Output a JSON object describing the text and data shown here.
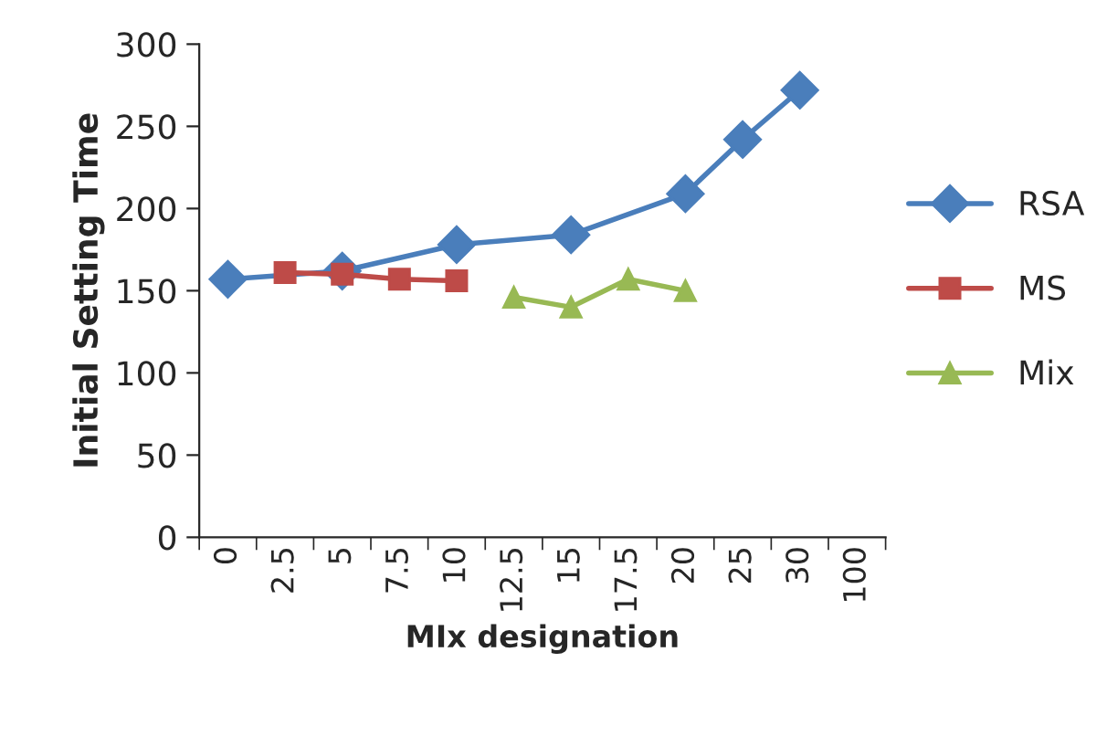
{
  "chart_data": {
    "type": "line",
    "ylabel": "Initial Setting Time",
    "xlabel": "MIx designation",
    "categories": [
      "0",
      "2.5",
      "5",
      "7.5",
      "10",
      "12.5",
      "15",
      "17.5",
      "20",
      "25",
      "30",
      "100"
    ],
    "ylim": [
      0,
      300
    ],
    "yticks": [
      0,
      50,
      100,
      150,
      200,
      250,
      300
    ],
    "grid": false,
    "legend": "right",
    "series": [
      {
        "name": "RSA",
        "color": "#4a7ebb",
        "marker": "diamond",
        "values": [
          157,
          null,
          162,
          null,
          178,
          null,
          184,
          null,
          209,
          242,
          272,
          null
        ]
      },
      {
        "name": "MS",
        "color": "#be4b48",
        "marker": "square",
        "values": [
          null,
          161,
          160,
          157,
          156,
          null,
          null,
          null,
          null,
          null,
          null,
          null
        ]
      },
      {
        "name": "Mix",
        "color": "#98b954",
        "marker": "triangle",
        "values": [
          null,
          null,
          null,
          null,
          null,
          146,
          140,
          157,
          150,
          null,
          null,
          null
        ]
      }
    ]
  }
}
